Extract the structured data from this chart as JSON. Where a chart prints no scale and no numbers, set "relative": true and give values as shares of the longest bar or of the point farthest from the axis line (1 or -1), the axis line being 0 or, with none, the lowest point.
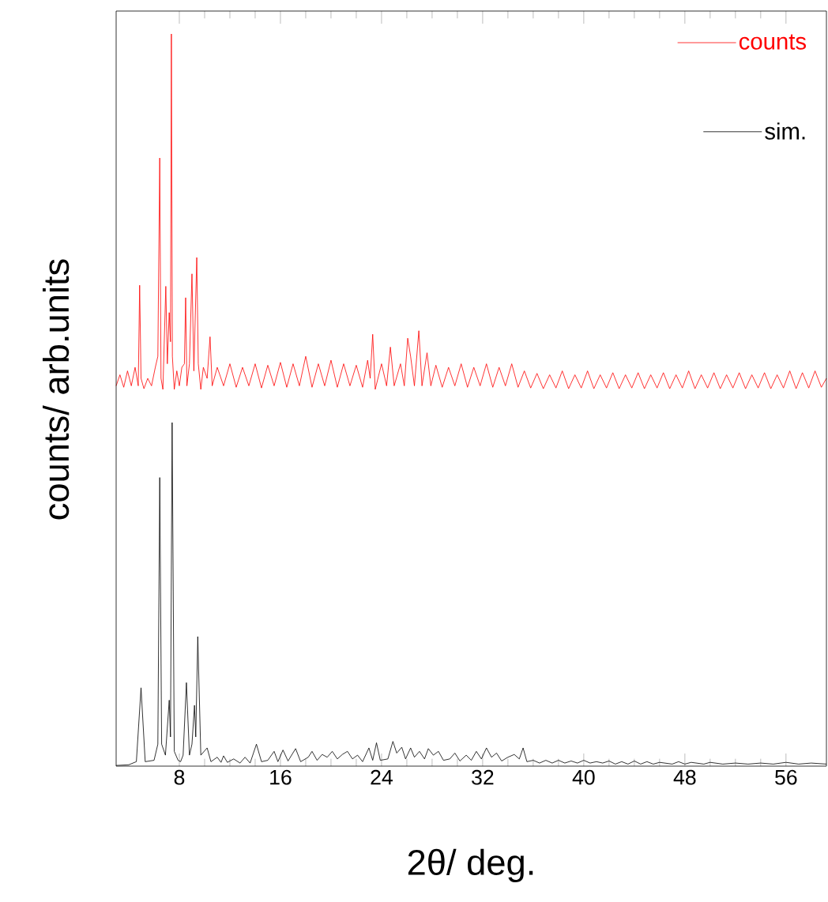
{
  "chart_data": [
    {
      "type": "line",
      "relative": true,
      "ylabel": "counts/ arb.units",
      "xlim": [
        3,
        59.2
      ],
      "xticks": [
        8,
        16,
        24,
        32,
        40,
        48,
        56
      ],
      "tick_labels": false,
      "legend": "top right",
      "grid": false,
      "marker": "none",
      "line_style": "solid",
      "series": [
        {
          "name": "counts",
          "color": "#ff0000",
          "x": [
            3.0,
            3.3,
            3.6,
            3.9,
            4.2,
            4.5,
            4.75,
            4.86,
            4.97,
            5.2,
            5.5,
            5.8,
            6.1,
            6.3,
            6.45,
            6.55,
            6.7,
            6.93,
            7.05,
            7.2,
            7.3,
            7.37,
            7.45,
            7.6,
            7.8,
            8.0,
            8.2,
            8.4,
            8.5,
            8.6,
            8.8,
            9.0,
            9.15,
            9.38,
            9.5,
            9.7,
            9.9,
            10.2,
            10.43,
            10.6,
            11.0,
            11.5,
            12.0,
            12.5,
            13.0,
            13.5,
            14.0,
            14.5,
            15.0,
            15.5,
            16.0,
            16.5,
            17.0,
            17.5,
            18.0,
            18.5,
            19.0,
            19.5,
            20.0,
            20.5,
            21.0,
            21.5,
            22.0,
            22.5,
            22.9,
            23.1,
            23.3,
            23.5,
            24.0,
            24.4,
            24.7,
            25.0,
            25.5,
            25.8,
            26.07,
            26.3,
            26.6,
            26.95,
            27.2,
            27.6,
            27.9,
            28.3,
            28.8,
            29.3,
            29.8,
            30.3,
            30.8,
            31.3,
            31.8,
            32.3,
            32.8,
            33.3,
            33.8,
            34.3,
            34.8,
            35.3,
            35.8,
            36.3,
            36.8,
            37.3,
            37.8,
            38.3,
            38.8,
            39.3,
            39.8,
            40.3,
            40.8,
            41.3,
            41.8,
            42.3,
            42.8,
            43.3,
            43.8,
            44.3,
            44.8,
            45.3,
            45.8,
            46.3,
            46.8,
            47.3,
            47.8,
            48.3,
            48.8,
            49.3,
            49.8,
            50.3,
            50.8,
            51.3,
            51.8,
            52.3,
            52.8,
            53.3,
            53.8,
            54.3,
            54.8,
            55.3,
            55.8,
            56.3,
            56.8,
            57.3,
            57.8,
            58.3,
            58.8,
            59.2
          ],
          "values": [
            0.01,
            0.041,
            0.006,
            0.052,
            0.01,
            0.062,
            0.01,
            0.293,
            0.031,
            0.002,
            0.031,
            0.01,
            0.062,
            0.093,
            0.651,
            0.031,
            0,
            0.29,
            0.072,
            0.216,
            0.134,
            1,
            0.093,
            0,
            0.052,
            0.01,
            0.062,
            0.072,
            0.258,
            0.01,
            0.072,
            0.325,
            0.052,
            0.371,
            0.072,
            0,
            0.062,
            0.031,
            0.148,
            0.01,
            0.062,
            0.01,
            0.072,
            0.006,
            0.062,
            0.01,
            0.072,
            0.004,
            0.068,
            0.01,
            0.076,
            0.006,
            0.072,
            0.01,
            0.093,
            0.006,
            0.072,
            0.01,
            0.082,
            0.006,
            0.072,
            0.01,
            0.068,
            0.006,
            0.082,
            0.031,
            0.155,
            0,
            0.072,
            0.01,
            0.119,
            0.01,
            0.072,
            0.01,
            0.144,
            0.093,
            0.01,
            0.165,
            0.01,
            0.103,
            0.01,
            0.068,
            0.006,
            0.062,
            0.01,
            0.072,
            0.006,
            0.062,
            0.01,
            0.072,
            0.006,
            0.062,
            0.01,
            0.072,
            0.006,
            0.052,
            0.004,
            0.045,
            0.002,
            0.041,
            0.004,
            0.052,
            0.002,
            0.041,
            0.004,
            0.052,
            0.002,
            0.041,
            0.004,
            0.047,
            0.002,
            0.041,
            0.004,
            0.047,
            0.002,
            0.041,
            0.004,
            0.047,
            0.002,
            0.041,
            0.004,
            0.052,
            0.002,
            0.041,
            0.004,
            0.047,
            0.002,
            0.041,
            0.004,
            0.047,
            0.002,
            0.041,
            0.004,
            0.047,
            0.002,
            0.041,
            0.004,
            0.052,
            0.002,
            0.047,
            0.004,
            0.052,
            0.006,
            0.031
          ]
        }
      ]
    },
    {
      "type": "line",
      "relative": true,
      "xlabel": "2θ/ deg.",
      "xlim": [
        3,
        59.2
      ],
      "xticks": [
        8,
        16,
        24,
        32,
        40,
        48,
        56
      ],
      "tick_labels": "x",
      "legend": "top right",
      "grid": false,
      "marker": "none",
      "line_style": "solid",
      "series": [
        {
          "name": "sim.",
          "color": "#000000",
          "x": [
            3.0,
            4.0,
            4.6,
            4.97,
            5.3,
            6.0,
            6.3,
            6.45,
            6.6,
            6.9,
            7.2,
            7.3,
            7.43,
            7.6,
            7.9,
            8.1,
            8.3,
            8.56,
            8.8,
            9.0,
            9.2,
            9.3,
            9.46,
            9.7,
            10.2,
            10.5,
            11.0,
            11.3,
            11.5,
            11.8,
            12.3,
            12.8,
            13.2,
            13.6,
            14.1,
            14.5,
            15.0,
            15.5,
            15.8,
            16.2,
            16.6,
            17.2,
            17.6,
            18.2,
            18.5,
            18.9,
            19.3,
            19.7,
            20.1,
            20.5,
            20.9,
            21.3,
            21.7,
            22.1,
            22.5,
            23.0,
            23.3,
            23.6,
            23.9,
            24.5,
            24.9,
            25.2,
            25.6,
            25.9,
            26.3,
            26.6,
            27.0,
            27.4,
            27.7,
            28.1,
            28.5,
            28.9,
            29.4,
            29.8,
            30.2,
            30.7,
            31.1,
            31.5,
            31.9,
            32.3,
            32.7,
            33.1,
            33.5,
            34.0,
            34.5,
            34.9,
            35.2,
            35.5,
            36.0,
            36.5,
            37.0,
            37.5,
            38.0,
            38.5,
            39.0,
            39.5,
            40.0,
            40.5,
            41.0,
            41.5,
            42.0,
            42.5,
            43.0,
            43.5,
            44.0,
            44.5,
            45.0,
            45.5,
            46.0,
            47.0,
            47.5,
            48.0,
            48.5,
            49.5,
            50.0,
            51.0,
            52.0,
            53.0,
            54.0,
            55.0,
            56.0,
            57.0,
            58.0,
            59.2
          ],
          "values": [
            0.002,
            0.004,
            0.013,
            0.228,
            0.013,
            0.017,
            0.064,
            0.84,
            0.064,
            0.032,
            0.192,
            0.085,
            1,
            0.043,
            0.017,
            0.013,
            0.032,
            0.243,
            0.032,
            0.064,
            0.177,
            0.085,
            0.377,
            0.032,
            0.053,
            0.013,
            0.026,
            0.011,
            0.03,
            0.011,
            0.021,
            0.009,
            0.026,
            0.009,
            0.064,
            0.013,
            0.017,
            0.043,
            0.013,
            0.047,
            0.015,
            0.051,
            0.013,
            0.026,
            0.043,
            0.017,
            0.034,
            0.026,
            0.043,
            0.021,
            0.034,
            0.043,
            0.021,
            0.032,
            0.013,
            0.053,
            0.017,
            0.068,
            0.017,
            0.021,
            0.072,
            0.038,
            0.055,
            0.021,
            0.053,
            0.026,
            0.043,
            0.021,
            0.051,
            0.032,
            0.043,
            0.017,
            0.021,
            0.038,
            0.015,
            0.032,
            0.017,
            0.043,
            0.021,
            0.053,
            0.026,
            0.038,
            0.015,
            0.026,
            0.034,
            0.021,
            0.053,
            0.013,
            0.017,
            0.009,
            0.017,
            0.009,
            0.017,
            0.009,
            0.015,
            0.009,
            0.017,
            0.009,
            0.013,
            0.009,
            0.015,
            0.006,
            0.013,
            0.006,
            0.015,
            0.006,
            0.013,
            0.006,
            0.011,
            0.006,
            0.013,
            0.006,
            0.011,
            0.006,
            0.011,
            0.006,
            0.009,
            0.006,
            0.009,
            0.006,
            0.011,
            0.006,
            0.009,
            0.006
          ]
        }
      ]
    }
  ]
}
